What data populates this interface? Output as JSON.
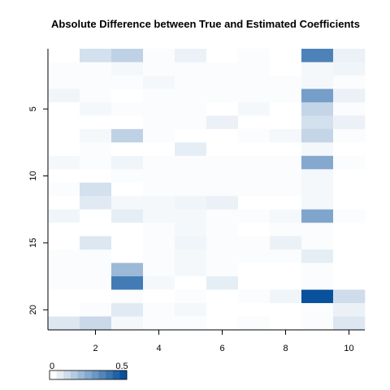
{
  "chart_data": {
    "type": "heatmap",
    "title": "Absolute Difference between True and Estimated Coefficients",
    "xlabel": "",
    "ylabel": "",
    "n_cols": 10,
    "n_rows": 21,
    "x_ticks": [
      2,
      4,
      6,
      8,
      10
    ],
    "y_ticks": [
      5,
      10,
      15,
      20
    ],
    "xlim": [
      0.5,
      10.5
    ],
    "ylim": [
      21.5,
      0.5
    ],
    "y_direction": "top-to-bottom",
    "color_scale": {
      "min": 0,
      "max": 0.5,
      "low_color": "#ffffff",
      "high_color": "#08519c",
      "labels": [
        "0",
        "0.5"
      ],
      "n_steps": 11,
      "placement": "bottom-left"
    },
    "values": [
      [
        0.0,
        0.09,
        0.13,
        0.01,
        0.04,
        0.0,
        0.01,
        0.0,
        0.36,
        0.04
      ],
      [
        0.01,
        0.01,
        0.02,
        0.01,
        0.01,
        0.01,
        0.01,
        0.0,
        0.02,
        0.03
      ],
      [
        0.01,
        0.01,
        0.01,
        0.02,
        0.01,
        0.01,
        0.01,
        0.01,
        0.02,
        0.01
      ],
      [
        0.03,
        0.01,
        0.0,
        0.01,
        0.01,
        0.01,
        0.01,
        0.01,
        0.28,
        0.04
      ],
      [
        0.0,
        0.02,
        0.01,
        0.01,
        0.01,
        0.0,
        0.02,
        0.0,
        0.12,
        0.01
      ],
      [
        0.0,
        0.0,
        0.0,
        0.01,
        0.01,
        0.04,
        0.0,
        0.0,
        0.09,
        0.04
      ],
      [
        0.0,
        0.02,
        0.13,
        0.01,
        0.0,
        0.0,
        0.01,
        0.02,
        0.12,
        0.01
      ],
      [
        0.0,
        0.01,
        0.0,
        0.0,
        0.05,
        0.0,
        0.0,
        0.0,
        0.02,
        0.0
      ],
      [
        0.02,
        0.01,
        0.03,
        0.01,
        0.01,
        0.01,
        0.01,
        0.01,
        0.25,
        0.01
      ],
      [
        0.0,
        0.0,
        0.01,
        0.01,
        0.01,
        0.01,
        0.01,
        0.01,
        0.02,
        0.0
      ],
      [
        0.01,
        0.09,
        0.0,
        0.01,
        0.01,
        0.01,
        0.01,
        0.01,
        0.02,
        0.0
      ],
      [
        0.0,
        0.06,
        0.02,
        0.02,
        0.03,
        0.04,
        0.0,
        0.0,
        0.02,
        0.0
      ],
      [
        0.03,
        0.0,
        0.05,
        0.02,
        0.02,
        0.01,
        0.01,
        0.02,
        0.26,
        0.01
      ],
      [
        0.0,
        0.0,
        0.0,
        0.01,
        0.02,
        0.01,
        0.0,
        0.01,
        0.01,
        0.0
      ],
      [
        0.0,
        0.07,
        0.0,
        0.01,
        0.03,
        0.01,
        0.01,
        0.04,
        0.01,
        0.0
      ],
      [
        0.01,
        0.01,
        0.0,
        0.01,
        0.02,
        0.01,
        0.01,
        0.01,
        0.05,
        0.0
      ],
      [
        0.01,
        0.01,
        0.2,
        0.01,
        0.02,
        0.01,
        0.0,
        0.0,
        0.01,
        0.0
      ],
      [
        0.01,
        0.01,
        0.38,
        0.02,
        0.0,
        0.05,
        0.0,
        0.0,
        0.01,
        0.0
      ],
      [
        0.0,
        0.0,
        0.01,
        0.0,
        0.01,
        0.0,
        0.01,
        0.03,
        0.5,
        0.1
      ],
      [
        0.0,
        0.01,
        0.06,
        0.01,
        0.02,
        0.0,
        0.0,
        0.0,
        0.01,
        0.04
      ],
      [
        0.07,
        0.11,
        0.02,
        0.01,
        0.01,
        0.0,
        0.01,
        0.0,
        0.01,
        0.07
      ]
    ]
  }
}
